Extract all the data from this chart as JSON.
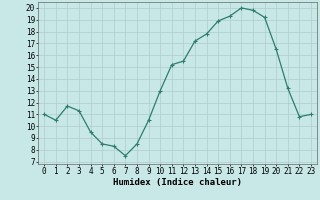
{
  "x": [
    0,
    1,
    2,
    3,
    4,
    5,
    6,
    7,
    8,
    9,
    10,
    11,
    12,
    13,
    14,
    15,
    16,
    17,
    18,
    19,
    20,
    21,
    22,
    23
  ],
  "y": [
    11,
    10.5,
    11.7,
    11.3,
    9.5,
    8.5,
    8.3,
    7.5,
    8.5,
    10.5,
    13.0,
    15.2,
    15.5,
    17.2,
    17.8,
    18.9,
    19.3,
    20.0,
    19.8,
    19.2,
    16.5,
    13.2,
    10.8,
    11.0
  ],
  "xlabel": "Humidex (Indice chaleur)",
  "xlim": [
    -0.5,
    23.5
  ],
  "ylim": [
    6.8,
    20.5
  ],
  "yticks": [
    7,
    8,
    9,
    10,
    11,
    12,
    13,
    14,
    15,
    16,
    17,
    18,
    19,
    20
  ],
  "xticks": [
    0,
    1,
    2,
    3,
    4,
    5,
    6,
    7,
    8,
    9,
    10,
    11,
    12,
    13,
    14,
    15,
    16,
    17,
    18,
    19,
    20,
    21,
    22,
    23
  ],
  "line_color": "#2e7d6e",
  "marker_color": "#2e7d6e",
  "bg_color": "#c8e8e8",
  "grid_color": "#b0cccc",
  "tick_fontsize": 5.5,
  "xlabel_fontsize": 6.5,
  "linewidth": 0.9,
  "markersize": 2.8
}
